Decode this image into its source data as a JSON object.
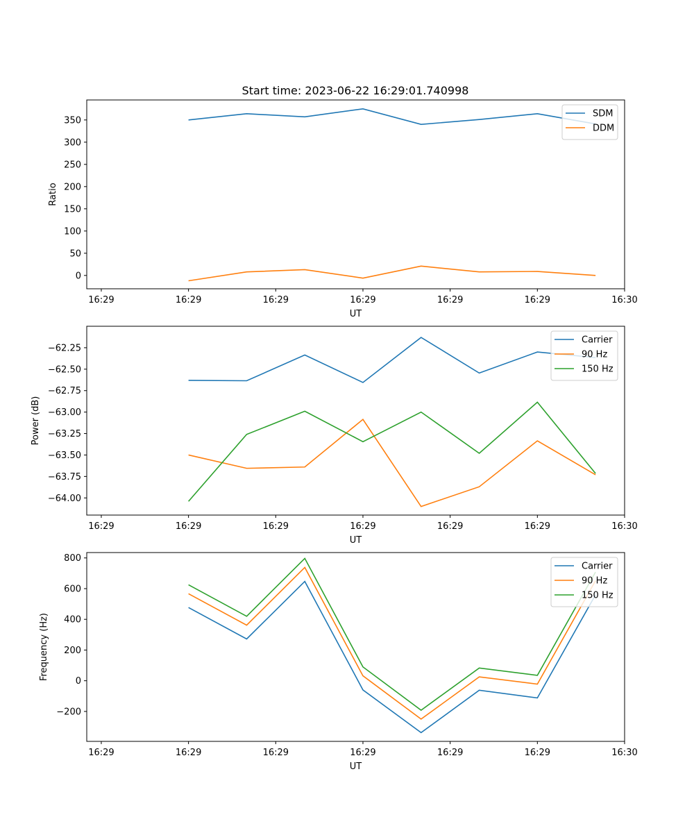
{
  "figure_title": "Start time: 2023-06-22 16:29:01.740998",
  "colors": {
    "series_1": "#1f77b4",
    "series_2": "#ff7f0e",
    "series_3": "#2ca02c",
    "axes": "#000000",
    "legend_border": "#cccccc"
  },
  "chart_data": [
    {
      "type": "line",
      "title": "Start time: 2023-06-22 16:29:01.740998",
      "xlabel": "UT",
      "ylabel": "Ratio",
      "x": [
        1,
        2,
        3,
        4,
        5,
        6,
        7,
        8
      ],
      "xlim": [
        -0.75,
        8.5
      ],
      "x_ticks": [
        -0.5,
        1,
        2.5,
        4,
        5.5,
        7,
        8.5
      ],
      "x_tick_labels": [
        "16:29",
        "16:29",
        "16:29",
        "16:29",
        "16:29",
        "16:29",
        "16:30"
      ],
      "ylim": [
        -30,
        395
      ],
      "y_ticks": [
        0,
        50,
        100,
        150,
        200,
        250,
        300,
        350
      ],
      "y_tick_labels": [
        "0",
        "50",
        "100",
        "150",
        "200",
        "250",
        "300",
        "350"
      ],
      "legend_position": "top-right",
      "series": [
        {
          "name": "SDM",
          "color": "#1f77b4",
          "values": [
            350,
            364,
            357,
            375,
            340,
            351,
            364,
            341
          ]
        },
        {
          "name": "DDM",
          "color": "#ff7f0e",
          "values": [
            -12,
            8,
            13,
            -6,
            21,
            8,
            9,
            0
          ]
        }
      ]
    },
    {
      "type": "line",
      "xlabel": "UT",
      "ylabel": "Power (dB)",
      "x": [
        1,
        2,
        3,
        4,
        5,
        6,
        7,
        8
      ],
      "xlim": [
        -0.75,
        8.5
      ],
      "x_ticks": [
        -0.5,
        1,
        2.5,
        4,
        5.5,
        7,
        8.5
      ],
      "x_tick_labels": [
        "16:29",
        "16:29",
        "16:29",
        "16:29",
        "16:29",
        "16:29",
        "16:30"
      ],
      "ylim": [
        -64.2,
        -62.0
      ],
      "y_ticks": [
        -64.0,
        -63.75,
        -63.5,
        -63.25,
        -63.0,
        -62.75,
        -62.5,
        -62.25
      ],
      "y_tick_labels": [
        "−64.00",
        "−63.75",
        "−63.50",
        "−63.25",
        "−63.00",
        "−62.75",
        "−62.50",
        "−62.25"
      ],
      "legend_position": "top-right",
      "series": [
        {
          "name": "Carrier",
          "color": "#1f77b4",
          "values": [
            -62.63,
            -62.635,
            -62.335,
            -62.655,
            -62.13,
            -62.545,
            -62.3,
            -62.365
          ]
        },
        {
          "name": "90 Hz",
          "color": "#ff7f0e",
          "values": [
            -63.5,
            -63.655,
            -63.64,
            -63.085,
            -64.1,
            -63.87,
            -63.335,
            -63.73
          ]
        },
        {
          "name": "150 Hz",
          "color": "#2ca02c",
          "values": [
            -64.04,
            -63.26,
            -62.99,
            -63.345,
            -63.0,
            -63.48,
            -62.885,
            -63.715
          ]
        }
      ]
    },
    {
      "type": "line",
      "xlabel": "UT",
      "ylabel": "Frequency (Hz)",
      "x": [
        1,
        2,
        3,
        4,
        5,
        6,
        7,
        8
      ],
      "xlim": [
        -0.75,
        8.5
      ],
      "x_ticks": [
        -0.5,
        1,
        2.5,
        4,
        5.5,
        7,
        8.5
      ],
      "x_tick_labels": [
        "16:29",
        "16:29",
        "16:29",
        "16:29",
        "16:29",
        "16:29",
        "16:30"
      ],
      "ylim": [
        -395,
        835
      ],
      "y_ticks": [
        -200,
        0,
        200,
        400,
        600,
        800
      ],
      "y_tick_labels": [
        "−200",
        "0",
        "200",
        "400",
        "600",
        "800"
      ],
      "legend_position": "top-right",
      "series": [
        {
          "name": "Carrier",
          "color": "#1f77b4",
          "values": [
            477,
            272,
            647,
            -60,
            -338,
            -62,
            -112,
            560
          ]
        },
        {
          "name": "90 Hz",
          "color": "#ff7f0e",
          "values": [
            567,
            362,
            738,
            32,
            -250,
            25,
            -22,
            652
          ]
        },
        {
          "name": "150 Hz",
          "color": "#2ca02c",
          "values": [
            625,
            420,
            797,
            90,
            -192,
            83,
            35,
            708
          ]
        }
      ]
    }
  ]
}
